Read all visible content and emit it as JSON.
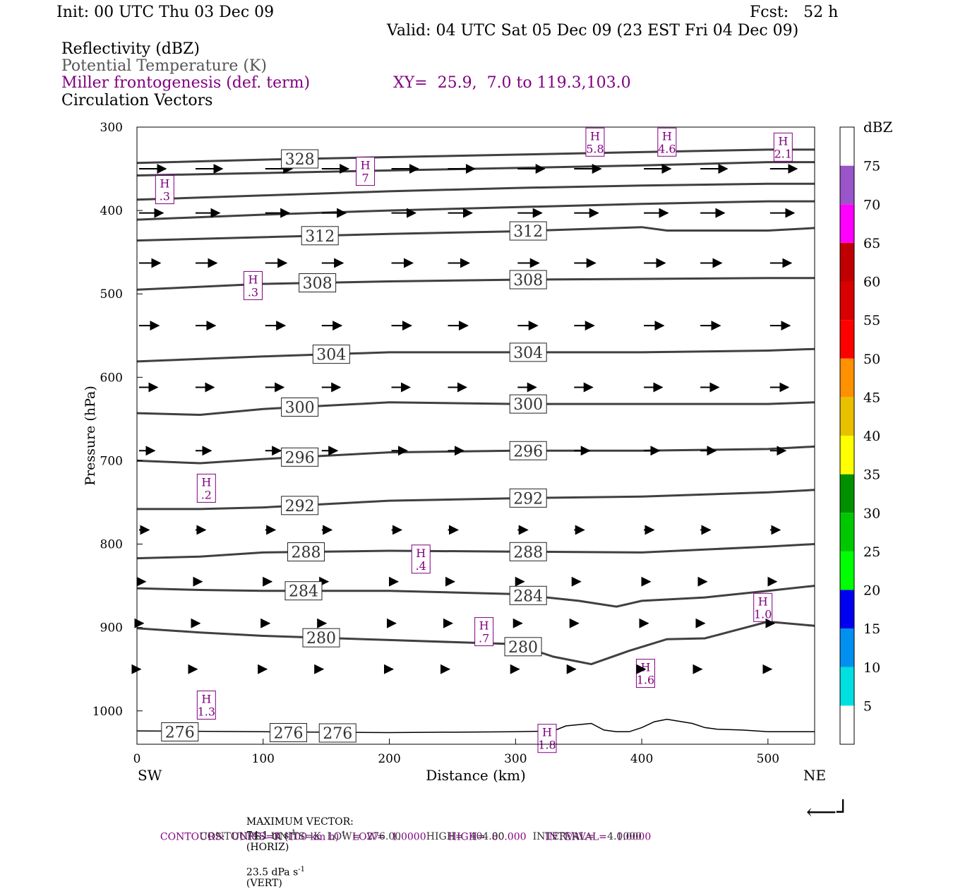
{
  "header": {
    "init": "Init: 00 UTC Thu 03 Dec 09",
    "fcst": "Fcst:   52 h",
    "valid": "Valid: 04 UTC Sat 05 Dec 09 (23 EST Fri 04 Dec 09)",
    "fields": {
      "reflectivity": "Reflectivity (dBZ)",
      "theta": "Potential Temperature (K)",
      "frontogenesis": "Miller frontogenesis (def. term)",
      "xy": "XY=  25.9,  7.0 to 119.3,103.0",
      "vectors": "Circulation Vectors"
    }
  },
  "footer": {
    "max_vector_label": "MAXIMUM VECTOR:",
    "max_vector_horiz": "74.1 m s",
    "horiz_sup": "-1",
    "horiz_tag": "(HORIZ)",
    "max_vector_vert": "23.5 dPa s",
    "vert_sup": "-1",
    "vert_tag": "(VERT)",
    "contours1_a": "CONTOURS:  UNITS=K (100 km h)",
    "contours1_sup": "-1",
    "contours1_b": "  LOW=  1.0000       HIGH=  80.000      INTERVAL=   1.0000",
    "contours2": "CONTOURS:  UNITS=K  LOW=  276.00        HIGH=  404.00         INTERVAL=    4.0000"
  },
  "colors": {
    "theta": "#404040",
    "frontogenesis": "#800080",
    "terrain": "#000000"
  },
  "chart_data": {
    "type": "cross-section",
    "ylabel": "Pressure (hPa)",
    "xlabel": "Distance (km)",
    "x_left_label": "SW",
    "x_right_label": "NE",
    "xlim": [
      0,
      537
    ],
    "ylim": [
      1040,
      300
    ],
    "yscale": "linear",
    "xticks": [
      0,
      100,
      200,
      300,
      400,
      500
    ],
    "yticks": [
      300,
      400,
      500,
      600,
      700,
      800,
      900,
      1000
    ],
    "colorbar": {
      "unit": "dBZ",
      "levels": [
        5,
        10,
        15,
        20,
        25,
        30,
        35,
        40,
        45,
        50,
        55,
        60,
        65,
        70,
        75
      ],
      "colors": [
        "#ffffff",
        "#00e0e0",
        "#0090f0",
        "#0000f0",
        "#00ff00",
        "#00c800",
        "#009000",
        "#ffff00",
        "#e8c000",
        "#ff9000",
        "#ff0000",
        "#d80000",
        "#c00000",
        "#ff00ff",
        "#9955c9",
        "#ffffff"
      ]
    },
    "isentropes": [
      {
        "theta": 328,
        "x": [
          0,
          100,
          200,
          300,
          400,
          500,
          537
        ],
        "p": [
          343,
          339,
          336,
          333,
          330,
          327,
          327
        ],
        "labels": [
          {
            "x": 129,
            "text": "328"
          }
        ]
      },
      {
        "theta": 324,
        "x": [
          0,
          100,
          200,
          300,
          400,
          500,
          537
        ],
        "p": [
          358,
          355,
          352,
          349,
          346,
          342,
          342
        ],
        "labels": []
      },
      {
        "theta": 320,
        "x": [
          0,
          100,
          200,
          300,
          400,
          500,
          537
        ],
        "p": [
          387,
          382,
          377,
          373,
          370,
          368,
          368
        ],
        "labels": []
      },
      {
        "theta": 316,
        "x": [
          0,
          100,
          200,
          300,
          400,
          500,
          537
        ],
        "p": [
          411,
          405,
          400,
          396,
          392,
          389,
          389
        ],
        "labels": []
      },
      {
        "theta": 312,
        "x": [
          0,
          100,
          200,
          300,
          400,
          420,
          500,
          537
        ],
        "p": [
          436,
          432,
          428,
          425,
          420,
          424,
          424,
          421
        ],
        "labels": [
          {
            "x": 145,
            "text": "312"
          },
          {
            "x": 310,
            "text": "312"
          }
        ]
      },
      {
        "theta": 308,
        "x": [
          0,
          100,
          200,
          300,
          400,
          500,
          537
        ],
        "p": [
          495,
          488,
          485,
          483,
          482,
          481,
          481
        ],
        "labels": [
          {
            "x": 143,
            "text": "308"
          },
          {
            "x": 310,
            "text": "308"
          }
        ]
      },
      {
        "theta": 304,
        "x": [
          0,
          100,
          200,
          300,
          400,
          500,
          537
        ],
        "p": [
          581,
          575,
          570,
          570,
          570,
          568,
          566
        ],
        "labels": [
          {
            "x": 154,
            "text": "304"
          },
          {
            "x": 310,
            "text": "304"
          }
        ]
      },
      {
        "theta": 300,
        "x": [
          0,
          50,
          100,
          200,
          300,
          400,
          500,
          537
        ],
        "p": [
          643,
          645,
          638,
          630,
          632,
          632,
          632,
          630
        ],
        "labels": [
          {
            "x": 129,
            "text": "300"
          },
          {
            "x": 310,
            "text": "300"
          }
        ]
      },
      {
        "theta": 296,
        "x": [
          0,
          50,
          100,
          200,
          300,
          400,
          500,
          537
        ],
        "p": [
          700,
          703,
          698,
          690,
          688,
          688,
          686,
          683
        ],
        "labels": [
          {
            "x": 129,
            "text": "296"
          },
          {
            "x": 310,
            "text": "296"
          }
        ]
      },
      {
        "theta": 292,
        "x": [
          0,
          50,
          100,
          200,
          300,
          400,
          500,
          537
        ],
        "p": [
          758,
          758,
          756,
          748,
          745,
          743,
          738,
          735
        ],
        "labels": [
          {
            "x": 129,
            "text": "292"
          },
          {
            "x": 310,
            "text": "292"
          }
        ]
      },
      {
        "theta": 288,
        "x": [
          0,
          50,
          100,
          200,
          300,
          400,
          500,
          537
        ],
        "p": [
          817,
          815,
          810,
          808,
          809,
          810,
          803,
          800
        ],
        "labels": [
          {
            "x": 134,
            "text": "288"
          },
          {
            "x": 310,
            "text": "288"
          }
        ]
      },
      {
        "theta": 284,
        "x": [
          0,
          50,
          100,
          200,
          300,
          350,
          380,
          400,
          450,
          500,
          537
        ],
        "p": [
          853,
          855,
          856,
          856,
          860,
          868,
          875,
          868,
          864,
          856,
          850
        ],
        "labels": [
          {
            "x": 132,
            "text": "284"
          },
          {
            "x": 310,
            "text": "284"
          }
        ]
      },
      {
        "theta": 280,
        "x": [
          0,
          50,
          100,
          200,
          300,
          330,
          360,
          390,
          420,
          450,
          470,
          500,
          537
        ],
        "p": [
          901,
          906,
          910,
          915,
          920,
          935,
          944,
          928,
          914,
          913,
          905,
          893,
          898
        ],
        "labels": [
          {
            "x": 146,
            "text": "280"
          },
          {
            "x": 306,
            "text": "280"
          }
        ]
      }
    ],
    "terrain": {
      "x": [
        0,
        100,
        200,
        300,
        330,
        340,
        360,
        370,
        380,
        390,
        400,
        410,
        420,
        440,
        450,
        460,
        480,
        500,
        537
      ],
      "p": [
        1024,
        1025,
        1026,
        1025,
        1024,
        1018,
        1015,
        1023,
        1025,
        1025,
        1020,
        1013,
        1010,
        1015,
        1020,
        1022,
        1023,
        1025,
        1025
      ]
    },
    "surface_isentrope_labels": [
      {
        "x": 34,
        "text": "276"
      },
      {
        "x": 120,
        "text": "276"
      },
      {
        "x": 159,
        "text": "276"
      }
    ],
    "frontogenesis_maxima": [
      {
        "x": 22,
        "p": 375,
        "h": "H",
        "v": ".3"
      },
      {
        "x": 181,
        "p": 353,
        "h": "H",
        "v": "7"
      },
      {
        "x": 92,
        "p": 490,
        "h": "H",
        "v": ".3"
      },
      {
        "x": 363,
        "p": 318,
        "h": "H",
        "v": "5.8"
      },
      {
        "x": 420,
        "p": 318,
        "h": "H",
        "v": "4.6"
      },
      {
        "x": 512,
        "p": 324,
        "h": "H",
        "v": "2.1"
      },
      {
        "x": 55,
        "p": 733,
        "h": "H",
        "v": ".2"
      },
      {
        "x": 225,
        "p": 818,
        "h": "H",
        "v": ".4"
      },
      {
        "x": 275,
        "p": 905,
        "h": "H",
        "v": ".7"
      },
      {
        "x": 496,
        "p": 876,
        "h": "H",
        "v": "1.0"
      },
      {
        "x": 403,
        "p": 955,
        "h": "H",
        "v": "1.6"
      },
      {
        "x": 55,
        "p": 993,
        "h": "H",
        "v": "1.3"
      },
      {
        "x": 325,
        "p": 1033,
        "h": "H",
        "v": "1.8"
      }
    ],
    "vector_rows": [
      {
        "p": 350,
        "x": [
          0,
          100,
          200,
          300,
          400,
          500
        ],
        "dx": 38,
        "dy": 0
      },
      {
        "p": 403,
        "x": [
          0,
          100,
          200,
          300,
          400,
          500
        ],
        "dx": 34,
        "dy": 0
      },
      {
        "p": 463,
        "x": [
          0,
          100,
          200,
          300,
          400,
          500
        ],
        "dx": 30,
        "dy": 0
      },
      {
        "p": 538,
        "x": [
          0,
          100,
          200,
          300,
          400,
          500
        ],
        "dx": 28,
        "dy": 0
      },
      {
        "p": 612,
        "x": [
          0,
          100,
          200,
          300,
          400,
          500
        ],
        "dx": 26,
        "dy": 0
      },
      {
        "p": 688,
        "x": [
          0,
          100,
          200,
          300,
          400,
          500
        ],
        "dx": 22,
        "dy": 0
      },
      {
        "p": 783,
        "x": [
          0,
          100,
          200,
          300,
          400,
          500
        ],
        "dx": 14,
        "dy": 0
      },
      {
        "p": 845,
        "x": [
          0,
          100,
          200,
          300,
          400,
          500
        ],
        "dx": 9,
        "dy": 0
      },
      {
        "p": 895,
        "x": [
          0,
          100,
          200,
          300,
          400,
          500
        ],
        "dx": 6,
        "dy": 0
      },
      {
        "p": 950,
        "x": [
          0,
          100,
          200,
          300,
          400,
          500
        ],
        "dx": 2,
        "dy": 0
      }
    ],
    "reference_vector": "⟵┘"
  }
}
